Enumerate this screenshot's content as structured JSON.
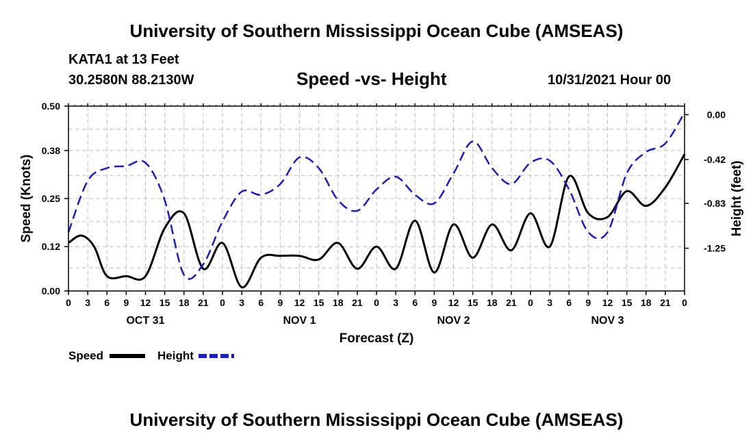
{
  "page": {
    "title_top": "University of Southern Mississippi Ocean Cube (AMSEAS)",
    "title_bottom": "University of Southern Mississippi Ocean Cube (AMSEAS)",
    "station": "KATA1 at 13 Feet",
    "coords": "30.2580N  88.2130W",
    "chart_title": "Speed -vs- Height",
    "date": "10/31/2021 Hour 00"
  },
  "chart_data": {
    "type": "line",
    "title": "Speed -vs- Height",
    "xlabel": "Forecast (Z)",
    "ylabel_left": "Speed (Knots)",
    "ylabel_right": "Height (feet)",
    "x_tick_labels": [
      "0",
      "3",
      "6",
      "9",
      "12",
      "15",
      "18",
      "21",
      "0",
      "3",
      "6",
      "9",
      "12",
      "15",
      "18",
      "21",
      "0",
      "3",
      "6",
      "9",
      "12",
      "15",
      "18",
      "21",
      "0",
      "3",
      "6",
      "9",
      "12",
      "15",
      "18",
      "21",
      "0"
    ],
    "day_labels": [
      {
        "label": "OCT 31",
        "at_hour": 12
      },
      {
        "label": "NOV 1",
        "at_hour": 36
      },
      {
        "label": "NOV 2",
        "at_hour": 60
      },
      {
        "label": "NOV 3",
        "at_hour": 84
      }
    ],
    "x_range_hours": [
      0,
      96
    ],
    "y_left": {
      "range": [
        0,
        0.5
      ],
      "ticks": [
        0.0,
        0.12,
        0.25,
        0.38,
        0.5
      ],
      "tick_labels": [
        "0.00",
        "0.12",
        "0.25",
        "0.38",
        "0.50"
      ]
    },
    "y_right": {
      "range": [
        -1.65,
        0.08
      ],
      "ticks": [
        0.0,
        -0.42,
        -0.83,
        -1.25
      ],
      "tick_labels": [
        "0.00",
        "-0.42",
        "-0.83",
        "-1.25"
      ]
    },
    "legend": [
      {
        "name": "Speed",
        "color": "#000000",
        "style": "solid"
      },
      {
        "name": "Height",
        "color": "#1a1acc",
        "style": "dashed"
      }
    ],
    "series": [
      {
        "name": "Speed",
        "axis": "left",
        "color": "#000000",
        "x": [
          0,
          2,
          4,
          6,
          9,
          12,
          15,
          18,
          21,
          24,
          27,
          30,
          33,
          36,
          39,
          42,
          45,
          48,
          51,
          54,
          57,
          60,
          63,
          66,
          69,
          72,
          75,
          78,
          81,
          84,
          87,
          90,
          93,
          96
        ],
        "values": [
          0.13,
          0.15,
          0.12,
          0.04,
          0.04,
          0.04,
          0.17,
          0.21,
          0.06,
          0.13,
          0.01,
          0.09,
          0.095,
          0.095,
          0.085,
          0.13,
          0.06,
          0.12,
          0.06,
          0.19,
          0.05,
          0.18,
          0.09,
          0.18,
          0.11,
          0.21,
          0.12,
          0.31,
          0.21,
          0.2,
          0.27,
          0.23,
          0.28,
          0.37
        ]
      },
      {
        "name": "Height",
        "axis": "right",
        "color": "#1a1acc",
        "x": [
          0,
          3,
          6,
          9,
          12,
          15,
          18,
          21,
          24,
          27,
          30,
          33,
          36,
          39,
          42,
          45,
          48,
          51,
          54,
          57,
          60,
          63,
          66,
          69,
          72,
          75,
          78,
          81,
          84,
          87,
          90,
          93,
          96
        ],
        "values": [
          -1.1,
          -0.62,
          -0.5,
          -0.48,
          -0.45,
          -0.8,
          -1.5,
          -1.4,
          -1.0,
          -0.72,
          -0.75,
          -0.65,
          -0.4,
          -0.5,
          -0.8,
          -0.9,
          -0.7,
          -0.58,
          -0.75,
          -0.83,
          -0.55,
          -0.25,
          -0.5,
          -0.65,
          -0.45,
          -0.43,
          -0.7,
          -1.1,
          -1.1,
          -0.55,
          -0.35,
          -0.27,
          0.02
        ]
      }
    ]
  }
}
